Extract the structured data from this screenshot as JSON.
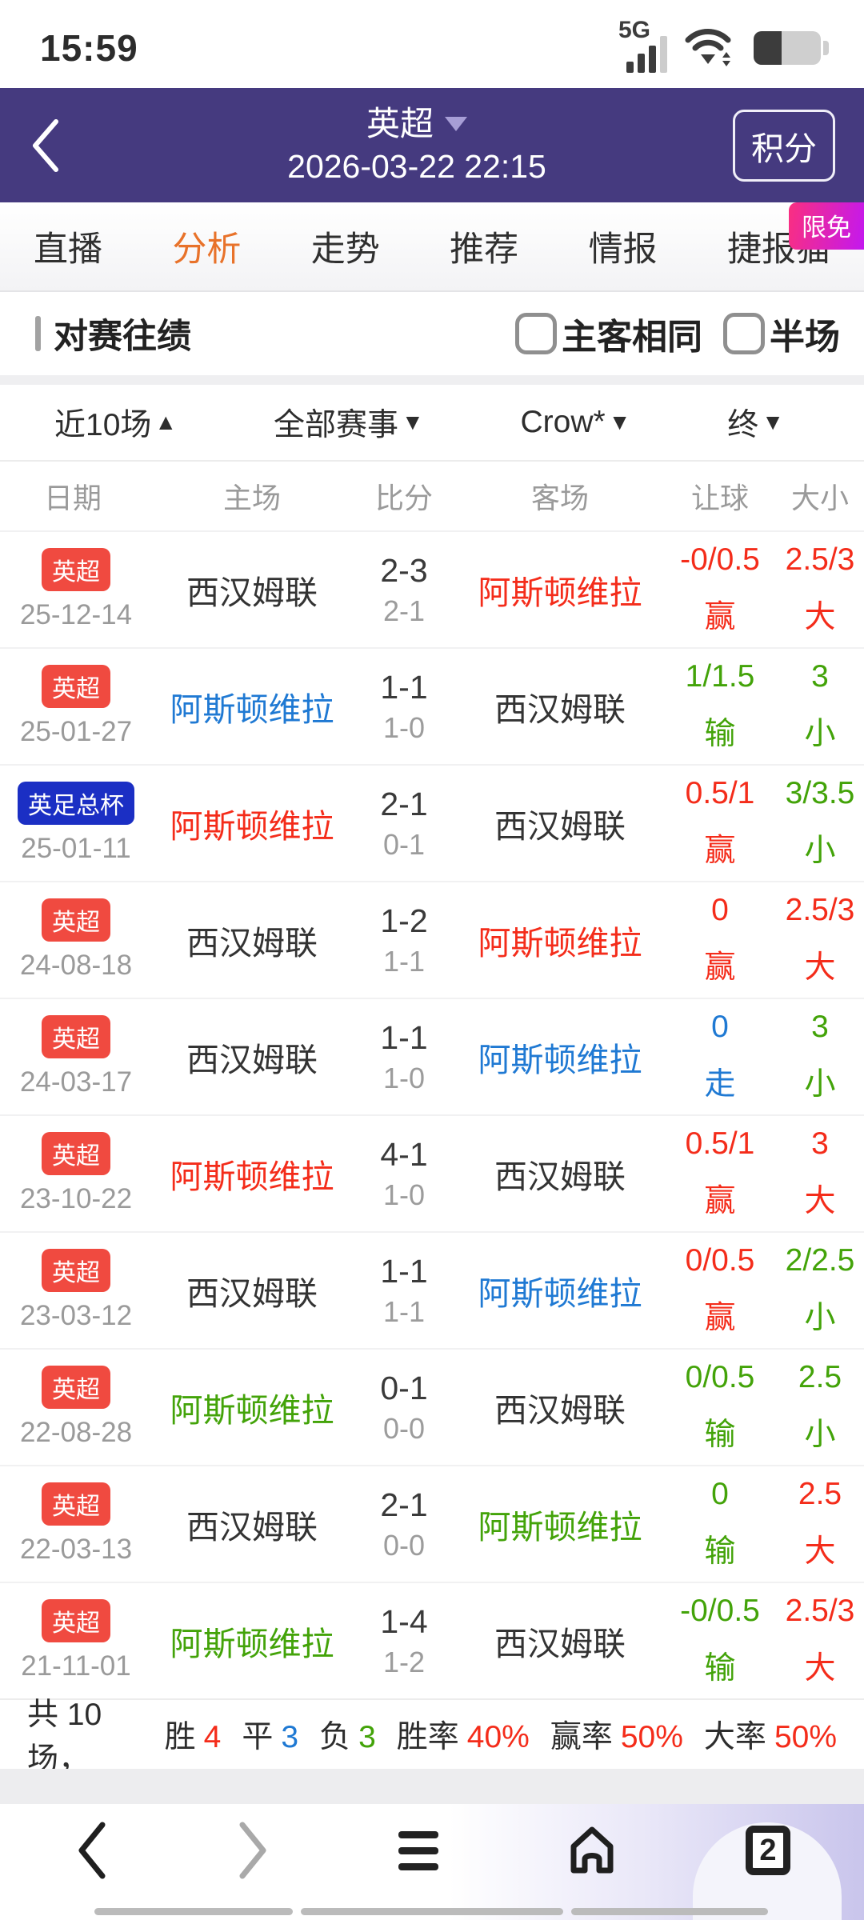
{
  "status_bar": {
    "time": "15:59",
    "network": "5G"
  },
  "header": {
    "league": "英超",
    "datetime": "2026-03-22 22:15",
    "standings_button": "积分"
  },
  "tabs": {
    "items": [
      "直播",
      "分析",
      "走势",
      "推荐",
      "情报",
      "捷报猫"
    ],
    "active": "分析",
    "promo_badge": "限免"
  },
  "section": {
    "title": "对赛往绩",
    "checkbox_same_homeaway": "主客相同",
    "checkbox_halftime": "半场"
  },
  "filters": [
    {
      "label": "近10场",
      "arrow": "▲"
    },
    {
      "label": "全部赛事",
      "arrow": "▼"
    },
    {
      "label": "Crow*",
      "arrow": "▼"
    },
    {
      "label": "终",
      "arrow": "▼"
    }
  ],
  "table": {
    "headers": [
      "日期",
      "主场",
      "比分",
      "客场",
      "让球",
      "大小"
    ],
    "rows": [
      {
        "league": "英超",
        "league_color": "red",
        "date": "25-12-14",
        "home": "西汉姆联",
        "home_color": "black",
        "score": "2-3",
        "half_score": "2-1",
        "away": "阿斯顿维拉",
        "away_color": "red",
        "handicap": "-0/0.5",
        "handicap_result": "赢",
        "handicap_color": "red",
        "ou": "2.5/3",
        "ou_result": "大",
        "ou_color": "red"
      },
      {
        "league": "英超",
        "league_color": "red",
        "date": "25-01-27",
        "home": "阿斯顿维拉",
        "home_color": "blue",
        "score": "1-1",
        "half_score": "1-0",
        "away": "西汉姆联",
        "away_color": "black",
        "handicap": "1/1.5",
        "handicap_result": "输",
        "handicap_color": "green",
        "ou": "3",
        "ou_result": "小",
        "ou_color": "green"
      },
      {
        "league": "英足总杯",
        "league_color": "blue",
        "date": "25-01-11",
        "home": "阿斯顿维拉",
        "home_color": "red",
        "score": "2-1",
        "half_score": "0-1",
        "away": "西汉姆联",
        "away_color": "black",
        "handicap": "0.5/1",
        "handicap_result": "赢",
        "handicap_color": "red",
        "ou": "3/3.5",
        "ou_result": "小",
        "ou_color": "green"
      },
      {
        "league": "英超",
        "league_color": "red",
        "date": "24-08-18",
        "home": "西汉姆联",
        "home_color": "black",
        "score": "1-2",
        "half_score": "1-1",
        "away": "阿斯顿维拉",
        "away_color": "red",
        "handicap": "0",
        "handicap_result": "赢",
        "handicap_color": "red",
        "ou": "2.5/3",
        "ou_result": "大",
        "ou_color": "red"
      },
      {
        "league": "英超",
        "league_color": "red",
        "date": "24-03-17",
        "home": "西汉姆联",
        "home_color": "black",
        "score": "1-1",
        "half_score": "1-0",
        "away": "阿斯顿维拉",
        "away_color": "blue",
        "handicap": "0",
        "handicap_result": "走",
        "handicap_color": "blue",
        "ou": "3",
        "ou_result": "小",
        "ou_color": "green"
      },
      {
        "league": "英超",
        "league_color": "red",
        "date": "23-10-22",
        "home": "阿斯顿维拉",
        "home_color": "red",
        "score": "4-1",
        "half_score": "1-0",
        "away": "西汉姆联",
        "away_color": "black",
        "handicap": "0.5/1",
        "handicap_result": "赢",
        "handicap_color": "red",
        "ou": "3",
        "ou_result": "大",
        "ou_color": "red"
      },
      {
        "league": "英超",
        "league_color": "red",
        "date": "23-03-12",
        "home": "西汉姆联",
        "home_color": "black",
        "score": "1-1",
        "half_score": "1-1",
        "away": "阿斯顿维拉",
        "away_color": "blue",
        "handicap": "0/0.5",
        "handicap_result": "赢",
        "handicap_color": "red",
        "ou": "2/2.5",
        "ou_result": "小",
        "ou_color": "green"
      },
      {
        "league": "英超",
        "league_color": "red",
        "date": "22-08-28",
        "home": "阿斯顿维拉",
        "home_color": "green",
        "score": "0-1",
        "half_score": "0-0",
        "away": "西汉姆联",
        "away_color": "black",
        "handicap": "0/0.5",
        "handicap_result": "输",
        "handicap_color": "green",
        "ou": "2.5",
        "ou_result": "小",
        "ou_color": "green"
      },
      {
        "league": "英超",
        "league_color": "red",
        "date": "22-03-13",
        "home": "西汉姆联",
        "home_color": "black",
        "score": "2-1",
        "half_score": "0-0",
        "away": "阿斯顿维拉",
        "away_color": "green",
        "handicap": "0",
        "handicap_result": "输",
        "handicap_color": "green",
        "ou": "2.5",
        "ou_result": "大",
        "ou_color": "red"
      },
      {
        "league": "英超",
        "league_color": "red",
        "date": "21-11-01",
        "home": "阿斯顿维拉",
        "home_color": "green",
        "score": "1-4",
        "half_score": "1-2",
        "away": "西汉姆联",
        "away_color": "black",
        "handicap": "-0/0.5",
        "handicap_result": "输",
        "handicap_color": "green",
        "ou": "2.5/3",
        "ou_result": "大",
        "ou_color": "red"
      }
    ]
  },
  "summary": {
    "prefix": "共 10 场，",
    "items": [
      {
        "label": "胜",
        "value": "4",
        "color": "red"
      },
      {
        "label": "平",
        "value": "3",
        "color": "blue"
      },
      {
        "label": "负",
        "value": "3",
        "color": "green"
      },
      {
        "label": "胜率",
        "value": "40%",
        "color": "red"
      },
      {
        "label": "赢率",
        "value": "50%",
        "color": "red"
      },
      {
        "label": "大率",
        "value": "50%",
        "color": "red"
      }
    ]
  },
  "bottom_nav": {
    "tab_count": "2"
  },
  "colors": {
    "header_purple": "#453a7f",
    "accent_orange": "#e8722a",
    "win_red": "#f42c1a",
    "loss_green": "#43a309",
    "draw_blue": "#1f79d3",
    "badge_red": "#f04a40",
    "badge_blue": "#1b2fc4",
    "promo_pink": "#fa2f80",
    "promo_purple": "#c318ef"
  }
}
